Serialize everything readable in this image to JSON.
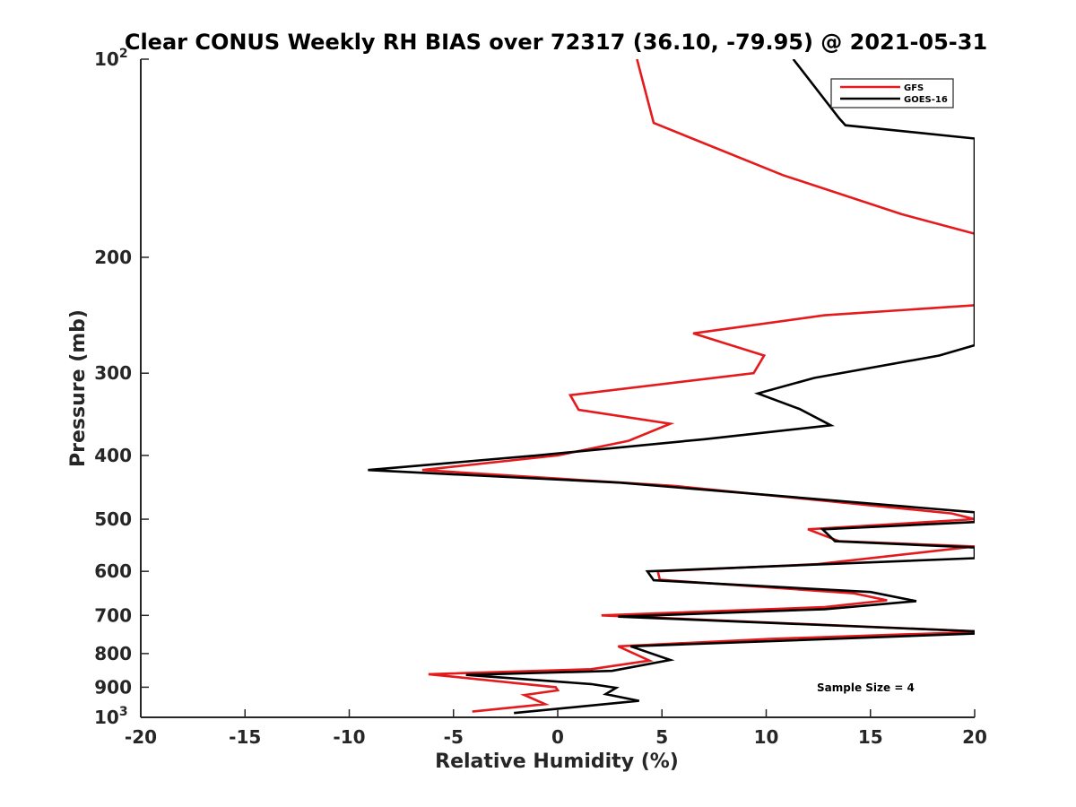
{
  "chart_data": {
    "type": "line",
    "title": "Clear CONUS Weekly RH BIAS over 72317 (36.10, -79.95) @ 2021-05-31",
    "xlabel": "Relative Humidity (%)",
    "ylabel": "Pressure (mb)",
    "xlim": [
      -20,
      20
    ],
    "ylim": [
      100,
      1000
    ],
    "y_scale": "log",
    "y_reversed": true,
    "x_ticks": [
      -20,
      -15,
      -10,
      -5,
      0,
      5,
      10,
      15,
      20
    ],
    "x_tick_labels": [
      "-20",
      "-15",
      "-10",
      "-5",
      "0",
      "5",
      "10",
      "15",
      "20"
    ],
    "y_ticks": [
      100,
      200,
      300,
      400,
      500,
      600,
      700,
      800,
      900,
      1000
    ],
    "y_tick_labels": [
      {
        "base": "10",
        "exp": "2"
      },
      {
        "base": "200",
        "exp": ""
      },
      {
        "base": "300",
        "exp": ""
      },
      {
        "base": "400",
        "exp": ""
      },
      {
        "base": "500",
        "exp": ""
      },
      {
        "base": "600",
        "exp": ""
      },
      {
        "base": "700",
        "exp": ""
      },
      {
        "base": "800",
        "exp": ""
      },
      {
        "base": "900",
        "exp": ""
      },
      {
        "base": "10",
        "exp": "3"
      }
    ],
    "grid": false,
    "legend_position": "top-right",
    "annotation": "Sample Size = 4",
    "series": [
      {
        "name": "GFS",
        "color": "#e41a1c",
        "points": [
          [
            3.8,
            100
          ],
          [
            4.6,
            125
          ],
          [
            10.8,
            150
          ],
          [
            16.5,
            172
          ],
          [
            20.5,
            186
          ],
          [
            20.5,
            236
          ],
          [
            12.8,
            245
          ],
          [
            6.5,
            261
          ],
          [
            9.9,
            282
          ],
          [
            9.4,
            300
          ],
          [
            0.6,
            324
          ],
          [
            1.0,
            341
          ],
          [
            5.4,
            358
          ],
          [
            3.4,
            380
          ],
          [
            0,
            400
          ],
          [
            -6.5,
            421
          ],
          [
            5.6,
            445
          ],
          [
            18.9,
            490
          ],
          [
            20,
            500
          ],
          [
            12.0,
            518
          ],
          [
            13.5,
            540
          ],
          [
            20,
            550
          ],
          [
            12.5,
            585
          ],
          [
            4.8,
            600
          ],
          [
            4.9,
            618
          ],
          [
            14.2,
            648
          ],
          [
            15.8,
            664
          ],
          [
            12.8,
            680
          ],
          [
            2.1,
            700
          ],
          [
            20,
            740
          ],
          [
            20,
            742
          ],
          [
            10.2,
            760
          ],
          [
            2.9,
            780
          ],
          [
            4.4,
            820
          ],
          [
            1.6,
            845
          ],
          [
            -6.2,
            860
          ],
          [
            -0.1,
            900
          ],
          [
            0,
            910
          ],
          [
            -1.6,
            925
          ],
          [
            -0.6,
            955
          ],
          [
            -4.1,
            980
          ]
        ]
      },
      {
        "name": "GOES-16",
        "color": "#000000",
        "points": [
          [
            11.3,
            100
          ],
          [
            13.5,
            123
          ],
          [
            13.8,
            126
          ],
          [
            20,
            132
          ],
          [
            20,
            272
          ],
          [
            18.3,
            282
          ],
          [
            12.3,
            305
          ],
          [
            9.6,
            322
          ],
          [
            11.6,
            340
          ],
          [
            13.1,
            360
          ],
          [
            7.0,
            378
          ],
          [
            -1.0,
            400
          ],
          [
            -9.1,
            421
          ],
          [
            3.0,
            440
          ],
          [
            20,
            488
          ],
          [
            20,
            505
          ],
          [
            12.7,
            518
          ],
          [
            13.3,
            540
          ],
          [
            20,
            552
          ],
          [
            20,
            573
          ],
          [
            4.3,
            600
          ],
          [
            4.6,
            619
          ],
          [
            15.0,
            645
          ],
          [
            17.2,
            666
          ],
          [
            12.8,
            685
          ],
          [
            2.9,
            703
          ],
          [
            20,
            740
          ],
          [
            20,
            746
          ],
          [
            3.5,
            780
          ],
          [
            5.4,
            818
          ],
          [
            2.6,
            850
          ],
          [
            -4.4,
            862
          ],
          [
            1.6,
            890
          ],
          [
            2.8,
            902
          ],
          [
            2.3,
            922
          ],
          [
            3.9,
            944
          ],
          [
            -2.1,
            985
          ]
        ]
      }
    ]
  }
}
